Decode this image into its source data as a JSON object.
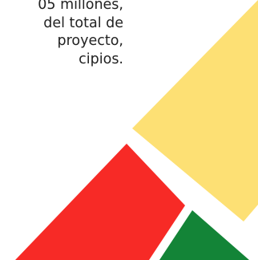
{
  "document": {
    "lines": [
      "05  millones,",
      "del total de",
      "proyecto,",
      "cipios."
    ]
  },
  "colors": {
    "yellow": "#fde074",
    "red": "#f72a26",
    "green": "#138437",
    "text": "#222222"
  }
}
